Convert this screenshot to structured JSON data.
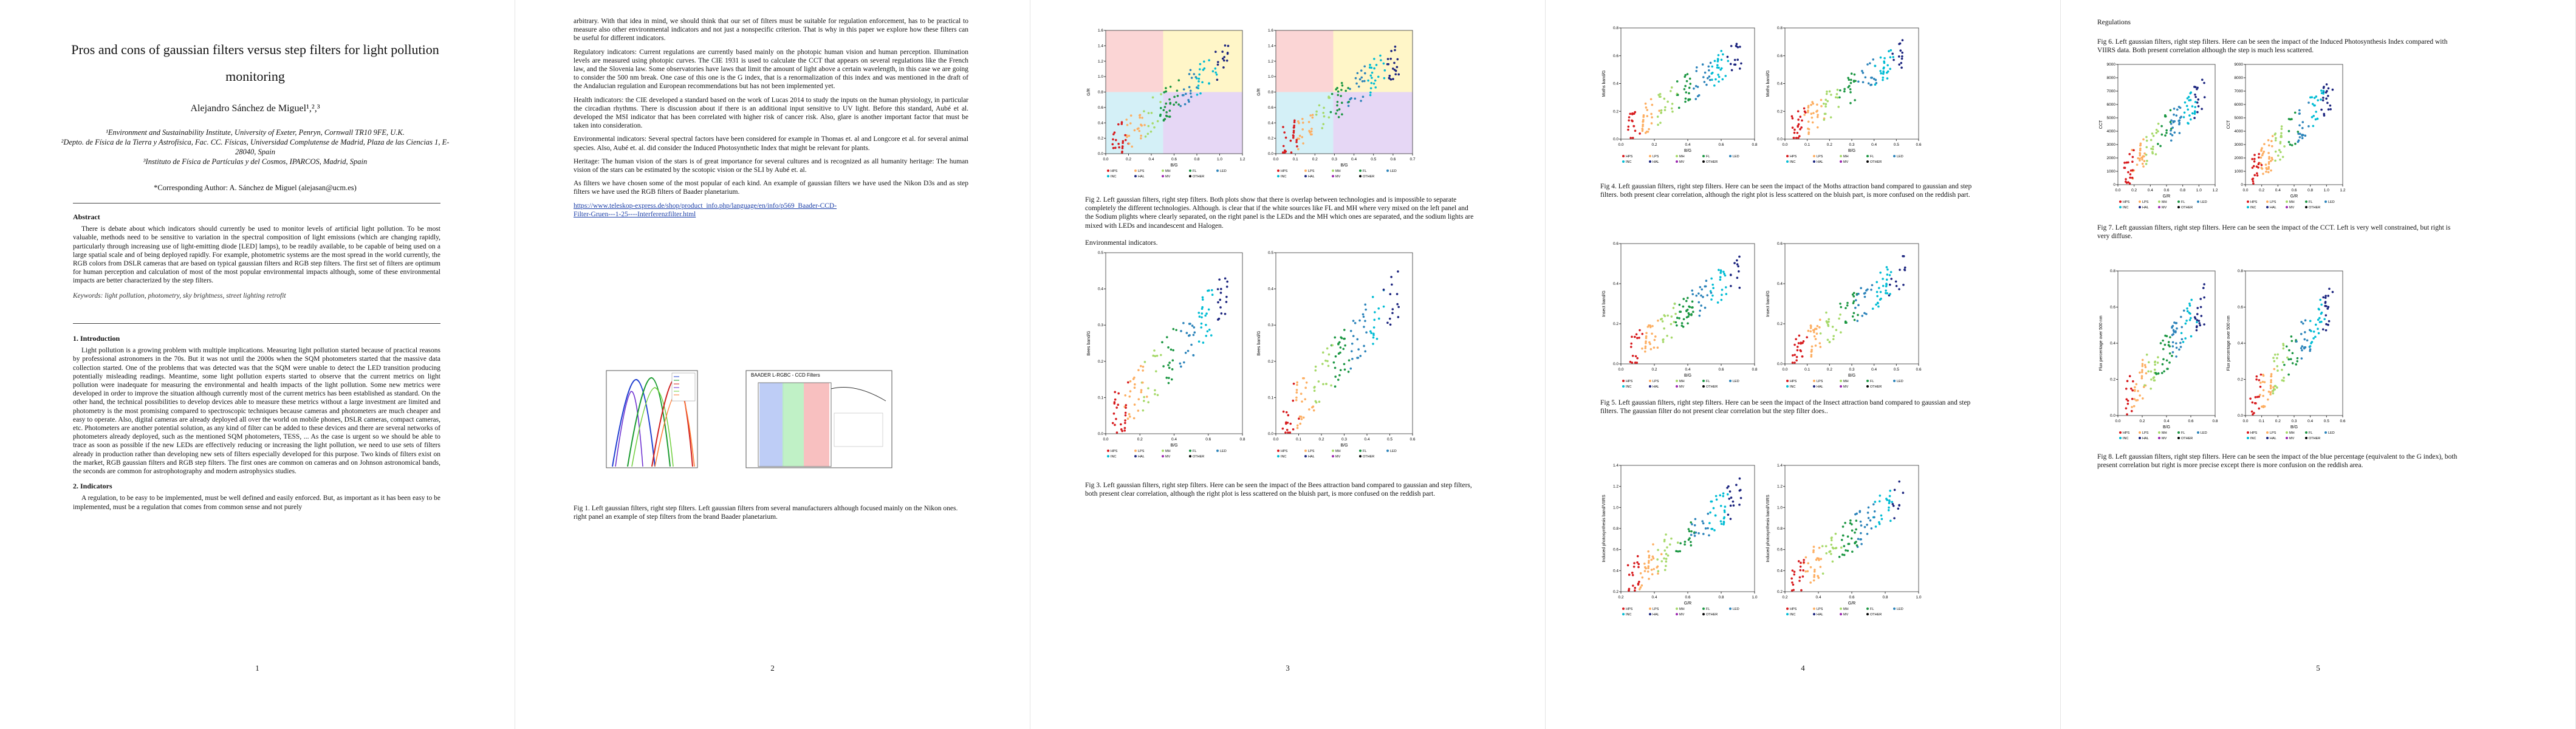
{
  "pages": [
    {
      "number": "1"
    },
    {
      "number": "2"
    },
    {
      "number": "3"
    },
    {
      "number": "4"
    },
    {
      "number": "5"
    }
  ],
  "paper": {
    "title": "Pros and cons of gaussian filters versus step filters for light pollution monitoring",
    "author": "Alejandro Sánchez de Miguel¹,²,³",
    "affiliations": [
      "¹Environment and Sustainability Institute, University of Exeter, Penryn, Cornwall TR10 9FE, U.K.",
      "²Depto. de Física de la Tierra y Astrofísica, Fac. CC. Físicas, Universidad Complutense de Madrid, Plaza de las Ciencias 1, E-28040, Spain",
      "³Instituto de Física de Partículas y del Cosmos, IPARCOS, Madrid, Spain"
    ],
    "corresponding": "*Corresponding Author: A. Sánchez de Miguel (alejasan@ucm.es)",
    "abstract_heading": "Abstract",
    "abstract": "There is debate about which indicators should currently be used to monitor levels of artificial light pollution. To be most valuable, methods need to be sensitive to variation in the spectral composition of light emissions (which are changing rapidly, particularly through increasing use of light-emitting diode [LED] lamps), to be readily available, to be capable of being used on a large spatial scale and of being deployed rapidly. For example, photometric systems are the most spread in the world currently, the RGB colors from DSLR cameras that are based on typical gaussian filters and RGB step filters. The first set of filters are optimum for human perception and calculation of most of the most popular environmental impacts although, some of these environmental impacts are better characterized by the step filters.",
    "keywords": "Keywords: light pollution, photometry, sky brightness, street lighting retrofit",
    "intro_heading": "1.   Introduction",
    "intro": "Light pollution is a growing problem with multiple implications. Measuring light pollution started because of practical reasons by professional astronomers in the 70s. But it was not until the 2000s when the SQM photometers started that the massive data collection started. One of the problems that was detected was that the SQM were unable to detect the LED transition producing potentially misleading readings. Meantime, some light pollution experts started to observe that the current metrics on light pollution were inadequate for measuring the environmental and health impacts of the light pollution. Some new metrics were developed in order to improve the situation although currently most of the current metrics has been established as standard. On the other hand, the technical possibilities to develop devices able to measure these metrics without a large investment are limited and photometry is the most promising compared to spectroscopic techniques because cameras and photometers are much cheaper and easy to operate. Also, digital cameras are already deployed all over the world on mobile phones, DSLR cameras, compact cameras, etc. Photometers are another potential solution, as any kind of filter can be added to these devices and there are several networks of photometers already deployed, such as the mentioned SQM photometers, TESS, ... As the case is urgent so we should be able to trace as soon as possible if the new LEDs are effectively reducing or increasing the light pollution, we need to use sets of filters already in production rather than developing new sets of filters especially developed for this purpose. Two kinds of filters exist on the market, RGB gaussian filters and RGB step filters. The first ones are common on cameras and on Johnson astronomical bands, the seconds are common for astrophotography and modern astrophysics studies.",
    "indicators_heading": "2.   Indicators",
    "indicators_start": "A regulation, to be easy to be implemented, must be well defined and easily enforced. But, as important as it has been easy to be implemented, must be a regulation that comes from common sense and not purely",
    "p2_para1": "arbitrary. With that idea in mind, we should think that our set of filters must be suitable for regulation enforcement, has to be practical to measure also other environmental indicators and not just a nonspecific criterion. That is why in this paper we explore how these filters can be useful for different indicators.",
    "p2_para2": "Regulatory indicators: Current regulations are currently based mainly on the photopic human vision and human perception. Illumination levels are measured using photopic curves. The CIE 1931 is used to calculate the CCT that appears on several regulations like the French law, and the Slovenia law. Some observatories have laws that limit the amount of light above a certain wavelength, in this case we are going to consider the 500 nm break. One case of this one is the G index, that is a renormalization of this index and was mentioned in the draft of the Andalucian regulation and European recommendations but has not been implemented yet.",
    "p2_para3": "Health indicators: the CIE developed a standard based on the work of Lucas 2014 to study the inputs on the human physiology, in particular the circadian rhythms. There is discussion about if there is an additional input sensitive to UV light. Before this standard, Aubé et al. developed the MSI indicator that has been correlated with higher risk of cancer risk. Also, glare is another important factor that must be taken into consideration.",
    "p2_para4": "Environmental indicators: Several spectral factors have been considered for example in Thomas et. al and Longcore et al. for several animal species. Also, Aubé et. al. did consider the Induced Photosynthetic Index that might be relevant for plants.",
    "p2_para5": "Heritage: The human vision of the stars is of great importance for several cultures and is recognized as all humanity heritage: The human vision of the stars can be estimated by the scotopic vision or the SLI by Aubé et. al.",
    "p2_para6": "As filters we have chosen some of the most popular of each kind. An example of gaussian filters we have used the Nikon D3s and as step filters we have used the RGB filters of Baader planetarium.",
    "p2_link": "https://www.teleskop-express.de/shop/product_info.php/language/en/info/p569_Baader-CCD-Filter-Gruen---1-25----Interferenzfilter.html",
    "fig1_caption": "Fig 1. Left gaussian filters, right step filters. Left gaussian filters from several manufacturers although focused mainly on the Nikon ones. right panel an example of step filters from the brand Baader planetarium.",
    "fig1_right_title": "BAADER L-RGBC - CCD Filters",
    "fig2_caption": "Fig 2. Left gaussian filters, right step filters. Both plots show that there is overlap between technologies and is impossible to separate completely the different technologies. Although. is clear that if the white sources like FL and MH where very mixed on the left panel and the Sodium plights where clearly separated, on the right panel is the LEDs and the MH which ones are separated, and the sodium lights are mixed with LEDs and incandescent and Halogen.",
    "env_heading": "Environmental indicators.",
    "fig3_caption": "Fig 3. Left gaussian filters, right step filters. Here can be seen the impact of the Bees attraction band compared to gaussian and step filters, both present clear correlation, although the right plot is less scattered on the bluish part, is more confused on the reddish part.",
    "fig4_caption": "Fig 4. Left gaussian filters, right step filters. Here can be seen the impact of the Moths attraction band compared to gaussian and step filters. both present clear correlation, although the right plot is less scattered on the bluish part, is more confused on the reddish part.",
    "fig5_caption": "Fig 5. Left gaussian filters, right step filters. Here can be seen the impact of the Insect attraction band compared to gaussian and step filters. The gaussian filter do not present clear correlation but the step filter does..",
    "p5_heading": "Regulations",
    "fig6_caption": "Fig 6. Left gaussian filters, right step filters. Here can be seen the impact of the Induced Photosynthesis Index compared with VIIRS data. Both present correlation although the step is much less scattered.",
    "fig7_caption": "Fig 7. Left gaussian filters, right step filters. Here can be seen the impact of the CCT. Left is very well constrained, but right is very diffuse.",
    "fig8_caption": "Fig 8. Left gaussian filters, right step filters. Here can be seen the impact of the blue percentage (equivalent to the G index), both present correlation but right is more precise except there is more confusion on the reddish area."
  },
  "colors": {
    "series": [
      "#d7191c",
      "#fdae61",
      "#a6d96a",
      "#1a9641",
      "#2b83ba",
      "#00bcd4",
      "#1a237e",
      "#9c27b0",
      "#000000"
    ],
    "legend_labels": [
      "HPS",
      "LPS",
      "MH",
      "FL",
      "LED",
      "INC",
      "HAL",
      "MV",
      "OTHER"
    ]
  },
  "chart_data": [
    {
      "id": "fig2-left",
      "type": "scatter",
      "xlabel": "B/G",
      "ylabel": "G/R",
      "xlim": [
        0,
        1.2
      ],
      "ylim": [
        0,
        1.6
      ],
      "xticks": [
        "0.0",
        "0.2",
        "0.4",
        "0.6",
        "0.8",
        "1.0",
        "1.2"
      ],
      "yticks": [
        "0.0",
        "0.2",
        "0.4",
        "0.6",
        "0.8",
        "1.0",
        "1.2",
        "1.4",
        "1.6"
      ]
    },
    {
      "id": "fig2-right",
      "type": "scatter",
      "xlabel": "B/G",
      "ylabel": "G/R",
      "xlim": [
        0,
        0.7
      ],
      "ylim": [
        0,
        1.6
      ],
      "xticks": [
        "0.0",
        "0.1",
        "0.2",
        "0.3",
        "0.4",
        "0.5",
        "0.6",
        "0.7"
      ],
      "yticks": [
        "0.0",
        "0.2",
        "0.4",
        "0.6",
        "0.8",
        "1.0",
        "1.2",
        "1.4",
        "1.6"
      ]
    },
    {
      "id": "fig3-left",
      "type": "scatter",
      "xlabel": "B/G",
      "ylabel": "Bees band/G",
      "xlim": [
        0,
        0.8
      ],
      "ylim": [
        0,
        0.5
      ],
      "xticks": [
        "0.0",
        "0.2",
        "0.4",
        "0.6",
        "0.8"
      ],
      "yticks": [
        "0.0",
        "0.1",
        "0.2",
        "0.3",
        "0.4",
        "0.5"
      ]
    },
    {
      "id": "fig3-right",
      "type": "scatter",
      "xlabel": "B/G",
      "ylabel": "Bees band/G",
      "xlim": [
        0,
        0.7
      ],
      "ylim": [
        0,
        0.5
      ],
      "xticks": [
        "0.0",
        "0.1",
        "0.2",
        "0.3",
        "0.4",
        "0.5",
        "0.6"
      ],
      "yticks": [
        "0.0",
        "0.1",
        "0.2",
        "0.3",
        "0.4",
        "0.5"
      ]
    },
    {
      "id": "fig4-left",
      "type": "scatter",
      "xlabel": "B/G",
      "ylabel": "Moths band/G",
      "xlim": [
        0,
        0.8
      ],
      "ylim": [
        0,
        0.8
      ],
      "xticks": [
        "0.0",
        "0.2",
        "0.4",
        "0.6",
        "0.8"
      ],
      "yticks": [
        "0.0",
        "0.2",
        "0.4",
        "0.6",
        "0.8"
      ]
    },
    {
      "id": "fig4-right",
      "type": "scatter",
      "xlabel": "B/G",
      "ylabel": "Moths band/G",
      "xlim": [
        0,
        0.7
      ],
      "ylim": [
        0,
        0.8
      ],
      "xticks": [
        "0.0",
        "0.1",
        "0.2",
        "0.3",
        "0.4",
        "0.5",
        "0.6"
      ],
      "yticks": [
        "0.0",
        "0.2",
        "0.4",
        "0.6",
        "0.8"
      ]
    },
    {
      "id": "fig5-left",
      "type": "scatter",
      "xlabel": "B/G",
      "ylabel": "Insect band/G",
      "xlim": [
        0,
        0.8
      ],
      "ylim": [
        0,
        0.6
      ],
      "xticks": [
        "0.0",
        "0.2",
        "0.4",
        "0.6",
        "0.8"
      ],
      "yticks": [
        "0.0",
        "0.2",
        "0.4",
        "0.6"
      ]
    },
    {
      "id": "fig5-right",
      "type": "scatter",
      "xlabel": "B/G",
      "ylabel": "Insect band/G",
      "xlim": [
        0,
        0.7
      ],
      "ylim": [
        0,
        0.6
      ],
      "xticks": [
        "0.0",
        "0.1",
        "0.2",
        "0.3",
        "0.4",
        "0.5",
        "0.6"
      ],
      "yticks": [
        "0.0",
        "0.2",
        "0.4",
        "0.6"
      ]
    },
    {
      "id": "fig6-left",
      "type": "scatter",
      "xlabel": "G/R",
      "ylabel": "Induced photosynthesis band/VIIRS",
      "xlim": [
        0,
        1.2
      ],
      "ylim": [
        0.2,
        1.4
      ],
      "xticks": [
        "0.2",
        "0.4",
        "0.6",
        "0.8",
        "1.0"
      ],
      "yticks": [
        "0.2",
        "0.4",
        "0.6",
        "0.8",
        "1.0",
        "1.2",
        "1.4"
      ]
    },
    {
      "id": "fig6-right",
      "type": "scatter",
      "xlabel": "G/R",
      "ylabel": "Induced photosynthesis band/VIIRS",
      "xlim": [
        0,
        1.2
      ],
      "ylim": [
        0.2,
        1.4
      ],
      "xticks": [
        "0.2",
        "0.4",
        "0.6",
        "0.8",
        "1.0"
      ],
      "yticks": [
        "0.2",
        "0.4",
        "0.6",
        "0.8",
        "1.0",
        "1.2",
        "1.4"
      ]
    },
    {
      "id": "fig7-left",
      "type": "scatter",
      "xlabel": "G/R",
      "ylabel": "CCT",
      "xlim": [
        0,
        1.2
      ],
      "ylim": [
        0,
        9000
      ],
      "xticks": [
        "0.0",
        "0.2",
        "0.4",
        "0.6",
        "0.8",
        "1.0",
        "1.2"
      ],
      "yticks": [
        "0",
        "1000",
        "2000",
        "3000",
        "4000",
        "5000",
        "6000",
        "7000",
        "8000",
        "9000"
      ]
    },
    {
      "id": "fig7-right",
      "type": "scatter",
      "xlabel": "G/R",
      "ylabel": "CCT",
      "xlim": [
        0,
        1.2
      ],
      "ylim": [
        0,
        9000
      ],
      "xticks": [
        "0.0",
        "0.2",
        "0.4",
        "0.6",
        "0.8",
        "1.0",
        "1.2"
      ],
      "yticks": [
        "0",
        "1000",
        "2000",
        "3000",
        "4000",
        "5000",
        "6000",
        "7000",
        "8000",
        "9000"
      ]
    },
    {
      "id": "fig8-left",
      "type": "scatter",
      "xlabel": "B/G",
      "ylabel": "Flux percentage over 500 nm",
      "xlim": [
        0,
        0.8
      ],
      "ylim": [
        0,
        0.8
      ],
      "xticks": [
        "0.0",
        "0.2",
        "0.4",
        "0.6",
        "0.8"
      ],
      "yticks": [
        "0.0",
        "0.2",
        "0.4",
        "0.6",
        "0.8"
      ]
    },
    {
      "id": "fig8-right",
      "type": "scatter",
      "xlabel": "B/G",
      "ylabel": "Flux percentage over 500 nm",
      "xlim": [
        0,
        0.7
      ],
      "ylim": [
        0,
        0.8
      ],
      "xticks": [
        "0.0",
        "0.1",
        "0.2",
        "0.3",
        "0.4",
        "0.5",
        "0.6"
      ],
      "yticks": [
        "0.0",
        "0.2",
        "0.4",
        "0.6",
        "0.8"
      ]
    }
  ]
}
